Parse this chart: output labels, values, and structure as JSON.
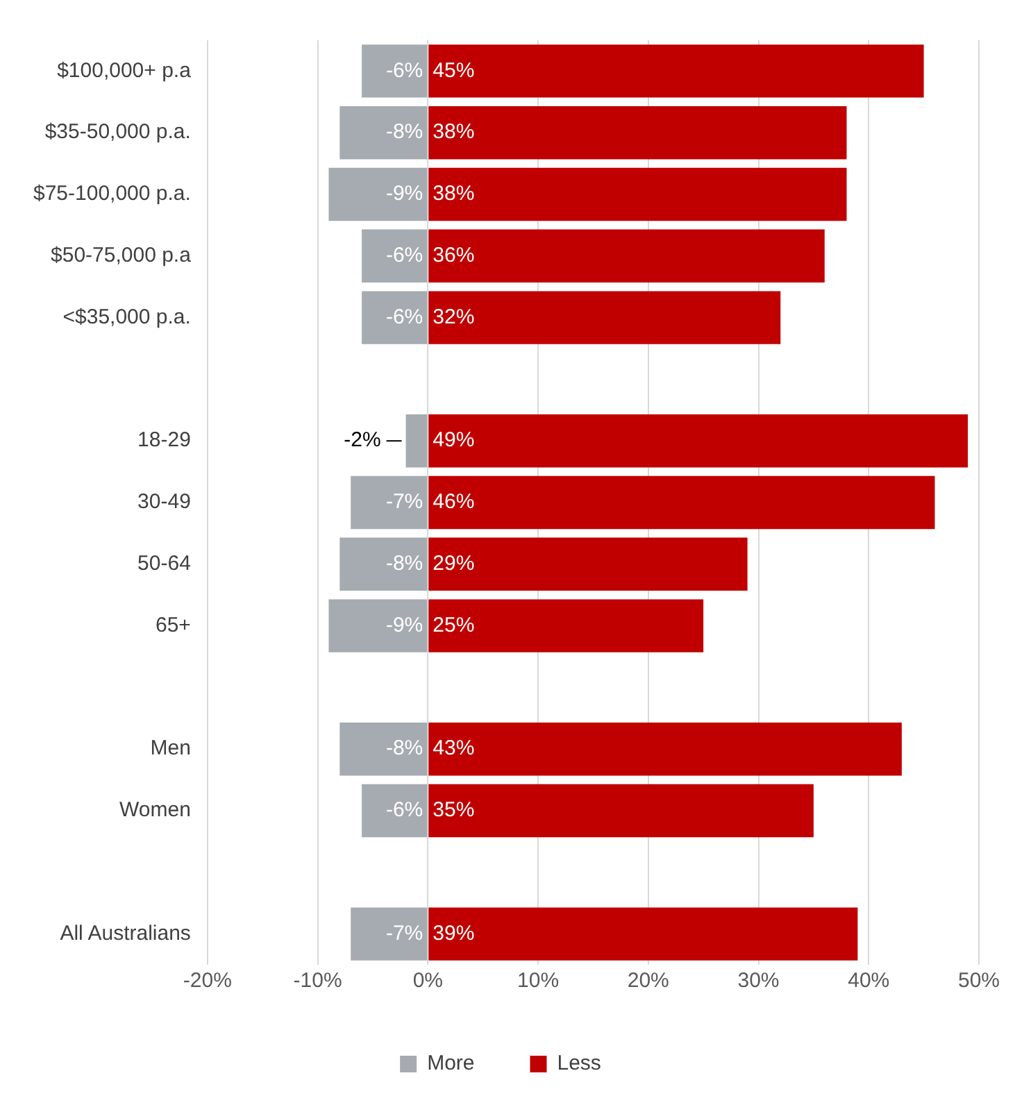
{
  "chart_data": {
    "type": "bar",
    "orientation": "horizontal",
    "stacked": true,
    "categories": [
      "$100,000+ p.a",
      "$35-50,000 p.a.",
      "$75-100,000 p.a.",
      "$50-75,000 p.a",
      "<$35,000 p.a.",
      null,
      "18-29",
      "30-49",
      "50-64",
      "65+",
      null,
      "Men",
      "Women",
      null,
      "All Australians"
    ],
    "series": [
      {
        "name": "More",
        "color": "#a5abb0",
        "values": [
          -6,
          -8,
          -9,
          -6,
          -6,
          null,
          -2,
          -7,
          -8,
          -9,
          null,
          -8,
          -6,
          null,
          -7
        ],
        "value_labels": [
          "-6%",
          "-8%",
          "-9%",
          "-6%",
          "-6%",
          null,
          "-2%",
          "-7%",
          "-8%",
          "-9%",
          null,
          "-8%",
          "-6%",
          null,
          "-7%"
        ]
      },
      {
        "name": "Less",
        "color": "#c00000",
        "values": [
          45,
          38,
          38,
          36,
          32,
          null,
          49,
          46,
          29,
          25,
          null,
          43,
          35,
          null,
          39
        ],
        "value_labels": [
          "45%",
          "38%",
          "38%",
          "36%",
          "32%",
          null,
          "49%",
          "46%",
          "29%",
          "25%",
          null,
          "43%",
          "35%",
          null,
          "39%"
        ]
      }
    ],
    "xlim": [
      -20,
      50
    ],
    "xticks": [
      {
        "value": -20,
        "label": "-20%"
      },
      {
        "value": -10,
        "label": "-10%"
      },
      {
        "value": 0,
        "label": "0%"
      },
      {
        "value": 10,
        "label": "10%"
      },
      {
        "value": 20,
        "label": "20%"
      },
      {
        "value": 30,
        "label": "30%"
      },
      {
        "value": 40,
        "label": "40%"
      },
      {
        "value": 50,
        "label": "50%"
      }
    ],
    "grid": "x",
    "legend": "bottom"
  }
}
